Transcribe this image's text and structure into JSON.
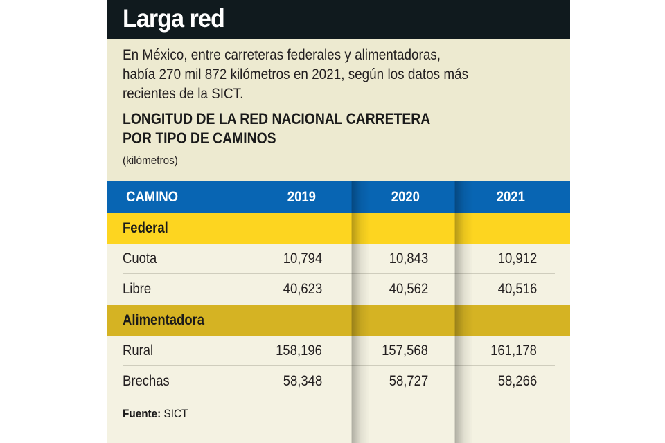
{
  "header": {
    "title": "Larga red"
  },
  "intro": {
    "lines": [
      "En México, entre carreteras federales y  alimentadoras,",
      "había 270 mil 872 kilómetros en 2021, según los datos más",
      "recientes de la SICT."
    ]
  },
  "table_title": {
    "line1": "LONGITUD DE LA RED NACIONAL CARRETERA",
    "line2": "POR TIPO DE CAMINOS"
  },
  "units": "(kilómetros)",
  "source": {
    "label": "Fuente:",
    "value": "SICT"
  },
  "colors": {
    "header_bg": "#101a1e",
    "intro_bg": "#edead0",
    "table_header_bg": "#0865b3",
    "federal_bg": "#fdd520",
    "alimentadora_bg": "#d5b323",
    "row_bg": "#f4f2e2"
  },
  "chart_data": {
    "type": "table",
    "title": "LONGITUD DE LA RED NACIONAL CARRETERA POR TIPO DE CAMINOS",
    "subtitle": "(kilómetros)",
    "columns": [
      "CAMINO",
      "2019",
      "2020",
      "2021"
    ],
    "groups": [
      {
        "name": "Federal",
        "rows": [
          {
            "label": "Cuota",
            "values": [
              "10,794",
              "10,843",
              "10,912"
            ]
          },
          {
            "label": "Libre",
            "values": [
              "40,623",
              "40,562",
              "40,516"
            ]
          }
        ]
      },
      {
        "name": "Alimentadora",
        "rows": [
          {
            "label": "Rural",
            "values": [
              "158,196",
              "157,568",
              "161,178"
            ]
          },
          {
            "label": "Brechas",
            "values": [
              "58,348",
              "58,727",
              "58,266"
            ]
          }
        ]
      }
    ],
    "source": "SICT"
  }
}
